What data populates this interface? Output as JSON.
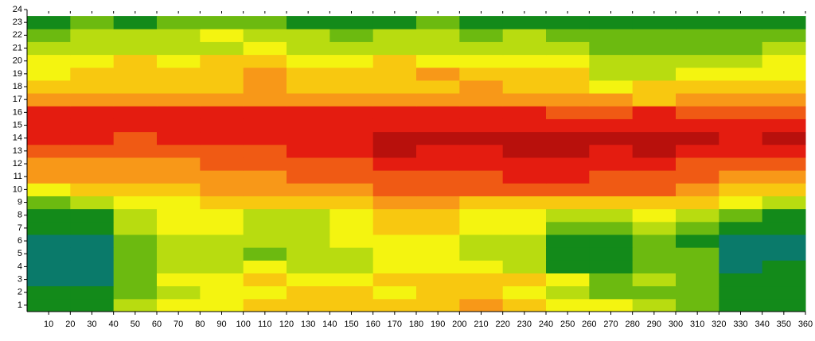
{
  "chart_data": {
    "type": "heatmap",
    "xbins": [
      0,
      20,
      40,
      60,
      80,
      100,
      120,
      140,
      160,
      180,
      200,
      220,
      240,
      260,
      280,
      300,
      320,
      340,
      360
    ],
    "y": [
      1,
      2,
      3,
      4,
      5,
      6,
      7,
      8,
      9,
      10,
      11,
      12,
      13,
      14,
      15,
      16,
      17,
      18,
      19,
      20,
      21,
      22,
      23
    ],
    "values": [
      [
        1,
        1,
        3,
        4,
        4,
        5,
        5,
        5,
        5,
        5,
        6,
        5,
        4,
        4,
        3,
        2,
        1,
        1
      ],
      [
        1,
        1,
        2,
        3,
        4,
        4,
        5,
        5,
        4,
        5,
        5,
        4,
        3,
        2,
        2,
        2,
        1,
        1
      ],
      [
        0,
        0,
        2,
        4,
        4,
        5,
        4,
        4,
        5,
        5,
        5,
        5,
        4,
        2,
        3,
        2,
        1,
        1
      ],
      [
        0,
        0,
        2,
        3,
        3,
        4,
        3,
        3,
        4,
        4,
        4,
        3,
        1,
        1,
        2,
        2,
        0,
        1
      ],
      [
        0,
        0,
        2,
        3,
        3,
        2,
        3,
        3,
        4,
        4,
        3,
        3,
        1,
        1,
        2,
        2,
        0,
        0
      ],
      [
        0,
        0,
        2,
        3,
        3,
        3,
        3,
        4,
        4,
        4,
        3,
        3,
        1,
        1,
        2,
        1,
        0,
        0
      ],
      [
        1,
        1,
        3,
        4,
        4,
        3,
        3,
        4,
        5,
        5,
        4,
        4,
        2,
        2,
        3,
        2,
        1,
        1
      ],
      [
        1,
        1,
        3,
        4,
        4,
        3,
        3,
        4,
        5,
        5,
        4,
        4,
        3,
        3,
        4,
        3,
        2,
        1
      ],
      [
        2,
        3,
        4,
        4,
        5,
        5,
        5,
        5,
        6,
        6,
        5,
        5,
        5,
        5,
        5,
        5,
        4,
        3
      ],
      [
        4,
        5,
        5,
        5,
        6,
        6,
        6,
        6,
        7,
        7,
        7,
        7,
        7,
        7,
        7,
        6,
        5,
        5
      ],
      [
        6,
        6,
        6,
        6,
        6,
        6,
        7,
        7,
        7,
        7,
        7,
        8,
        8,
        7,
        7,
        7,
        6,
        6
      ],
      [
        6,
        6,
        6,
        6,
        7,
        7,
        7,
        7,
        8,
        8,
        8,
        8,
        8,
        8,
        8,
        7,
        7,
        7
      ],
      [
        7,
        7,
        7,
        7,
        7,
        7,
        8,
        8,
        9,
        8,
        8,
        9,
        9,
        8,
        9,
        8,
        8,
        8
      ],
      [
        8,
        8,
        7,
        8,
        8,
        8,
        8,
        8,
        9,
        9,
        9,
        9,
        9,
        9,
        9,
        9,
        8,
        9
      ],
      [
        8,
        8,
        8,
        8,
        8,
        8,
        8,
        8,
        8,
        8,
        8,
        8,
        8,
        8,
        8,
        8,
        8,
        8
      ],
      [
        8,
        8,
        8,
        8,
        8,
        8,
        8,
        8,
        8,
        8,
        8,
        8,
        7,
        7,
        8,
        7,
        7,
        7
      ],
      [
        6,
        6,
        6,
        6,
        6,
        6,
        6,
        6,
        6,
        6,
        6,
        6,
        6,
        6,
        5,
        6,
        6,
        6
      ],
      [
        5,
        5,
        5,
        5,
        5,
        6,
        5,
        5,
        5,
        5,
        6,
        5,
        5,
        4,
        5,
        5,
        5,
        5
      ],
      [
        4,
        5,
        5,
        5,
        5,
        6,
        5,
        5,
        5,
        6,
        5,
        5,
        5,
        3,
        3,
        4,
        4,
        4
      ],
      [
        4,
        4,
        5,
        4,
        5,
        5,
        4,
        4,
        5,
        4,
        4,
        4,
        4,
        3,
        3,
        3,
        3,
        4
      ],
      [
        3,
        3,
        3,
        3,
        3,
        4,
        3,
        3,
        3,
        3,
        3,
        3,
        3,
        2,
        2,
        2,
        2,
        3
      ],
      [
        2,
        3,
        3,
        3,
        4,
        3,
        3,
        2,
        3,
        3,
        2,
        3,
        2,
        2,
        2,
        2,
        2,
        2
      ],
      [
        1,
        2,
        1,
        2,
        2,
        2,
        1,
        1,
        1,
        2,
        1,
        1,
        1,
        1,
        1,
        1,
        1,
        1
      ]
    ],
    "colorscale": [
      "#0a7a6a",
      "#138a1a",
      "#6cba10",
      "#b8dc10",
      "#f4f410",
      "#f8c810",
      "#f89818",
      "#f05a14",
      "#e41c10",
      "#b8100c"
    ],
    "xlim": [
      0,
      360
    ],
    "ylim": [
      0.5,
      24
    ],
    "xticks": [
      10,
      20,
      30,
      40,
      50,
      60,
      70,
      80,
      90,
      100,
      110,
      120,
      130,
      140,
      150,
      160,
      170,
      180,
      190,
      200,
      210,
      220,
      230,
      240,
      250,
      260,
      270,
      280,
      290,
      300,
      310,
      320,
      330,
      340,
      350,
      360
    ],
    "yticks": [
      1,
      2,
      3,
      4,
      5,
      6,
      7,
      8,
      9,
      10,
      11,
      12,
      13,
      14,
      15,
      16,
      17,
      18,
      19,
      20,
      21,
      22,
      23,
      24
    ]
  }
}
